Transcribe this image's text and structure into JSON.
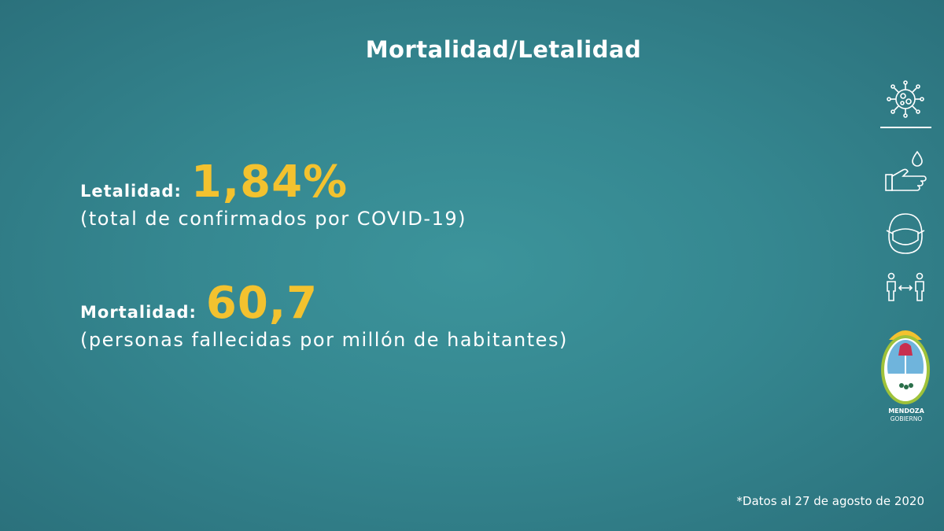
{
  "title": "Mortalidad/Letalidad",
  "metrics": [
    {
      "label": "Letalidad:",
      "value": "1,84%",
      "note": "(total de confirmados por COVID-19)"
    },
    {
      "label": "Mortalidad:",
      "value": "60,7",
      "note": "(personas fallecidas por millón de habitantes)"
    }
  ],
  "footnote": "*Datos al 27 de agosto de 2020",
  "logo": {
    "line1": "MENDOZA",
    "line2": "GOBIERNO"
  }
}
